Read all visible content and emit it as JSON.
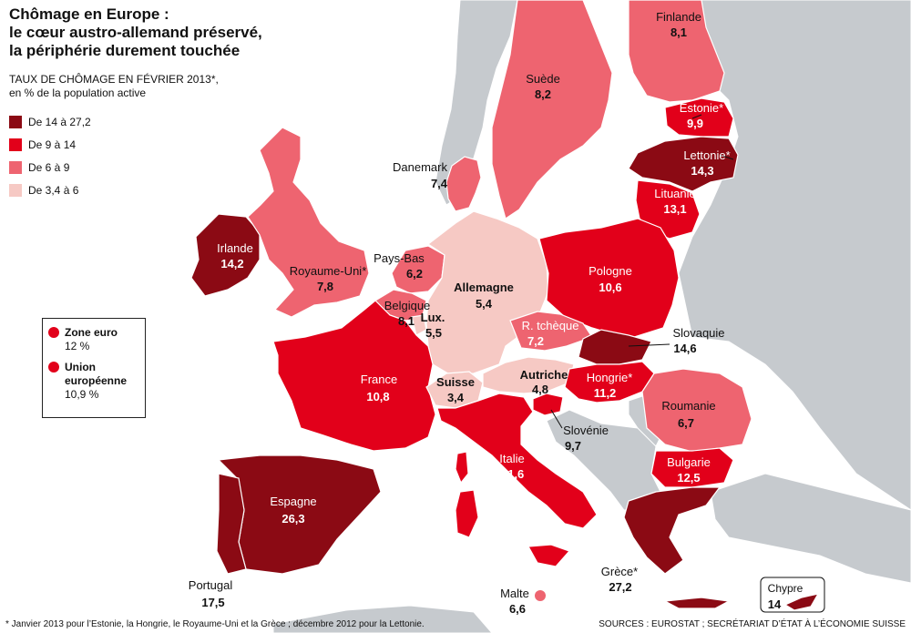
{
  "title": {
    "line1": "Chômage en Europe :",
    "line2": "le cœur austro-allemand préservé,",
    "line3": "la périphérie durement touchée"
  },
  "subtitle": {
    "line1": "TAUX DE CHÔMAGE EN FÉVRIER 2013*,",
    "line2": "en % de la population active"
  },
  "legend": [
    {
      "label": "De 14 à 27,2",
      "color": "#8b0a14"
    },
    {
      "label": "De 9 à 14",
      "color": "#e2001a"
    },
    {
      "label": "De 6 à 9",
      "color": "#ee6470"
    },
    {
      "label": "De 3,4 à 6",
      "color": "#f6c9c4"
    }
  ],
  "averages": {
    "zone_euro": {
      "label": "Zone euro",
      "value": "12 %"
    },
    "ue": {
      "label_line1": "Union",
      "label_line2": "européenne",
      "value": "10,9 %"
    }
  },
  "colors": {
    "sea": "#ffffff",
    "land_other": "#c6cace",
    "border": "#ffffff",
    "dot": "#e2001a"
  },
  "countries": {
    "finlande": {
      "name": "Finlande",
      "value": "8,1",
      "cls": 3
    },
    "suede": {
      "name": "Suède",
      "value": "8,2",
      "cls": 3
    },
    "estonie": {
      "name": "Estonie*",
      "value": "9,9",
      "cls": 2
    },
    "lettonie": {
      "name": "Lettonie*",
      "value": "14,3",
      "cls": 1
    },
    "lituanie": {
      "name": "Lituanie",
      "value": "13,1",
      "cls": 2
    },
    "danemark": {
      "name": "Danemark",
      "value": "7,4",
      "cls": 3
    },
    "irlande": {
      "name": "Irlande",
      "value": "14,2",
      "cls": 1
    },
    "royaume_uni": {
      "name": "Royaume-Uni*",
      "value": "7,8",
      "cls": 3
    },
    "pays_bas": {
      "name": "Pays-Bas",
      "value": "6,2",
      "cls": 3
    },
    "allemagne": {
      "name": "Allemagne",
      "value": "5,4",
      "cls": 4
    },
    "pologne": {
      "name": "Pologne",
      "value": "10,6",
      "cls": 2
    },
    "belgique": {
      "name": "Belgique",
      "value": "8,1",
      "cls": 3
    },
    "luxembourg": {
      "name": "Lux.",
      "value": "5,5",
      "cls": 4
    },
    "r_tcheque": {
      "name": "R. tchèque",
      "value": "7,2",
      "cls": 3
    },
    "slovaquie": {
      "name": "Slovaquie",
      "value": "14,6",
      "cls": 1
    },
    "france": {
      "name": "France",
      "value": "10,8",
      "cls": 2
    },
    "suisse": {
      "name": "Suisse",
      "value": "3,4",
      "cls": 4
    },
    "autriche": {
      "name": "Autriche",
      "value": "4,8",
      "cls": 4
    },
    "hongrie": {
      "name": "Hongrie*",
      "value": "11,2",
      "cls": 2
    },
    "roumanie": {
      "name": "Roumanie",
      "value": "6,7",
      "cls": 3
    },
    "slovenie": {
      "name": "Slovénie",
      "value": "9,7",
      "cls": 2
    },
    "italie": {
      "name": "Italie",
      "value": "11,6",
      "cls": 2
    },
    "bulgarie": {
      "name": "Bulgarie",
      "value": "12,5",
      "cls": 2
    },
    "espagne": {
      "name": "Espagne",
      "value": "26,3",
      "cls": 1
    },
    "portugal": {
      "name": "Portugal",
      "value": "17,5",
      "cls": 1
    },
    "grece": {
      "name": "Grèce*",
      "value": "27,2",
      "cls": 1
    },
    "malte": {
      "name": "Malte",
      "value": "6,6",
      "cls": 3
    },
    "chypre": {
      "name": "Chypre",
      "value": "14",
      "cls": 1
    }
  },
  "footnote": "* Janvier 2013 pour l’Estonie, la Hongrie, le Royaume-Uni et la Grèce ; décembre 2012 pour la Lettonie.",
  "sources": "SOURCES : EUROSTAT ; SECRÉTARIAT D’ÉTAT À L’ÉCONOMIE SUISSE"
}
